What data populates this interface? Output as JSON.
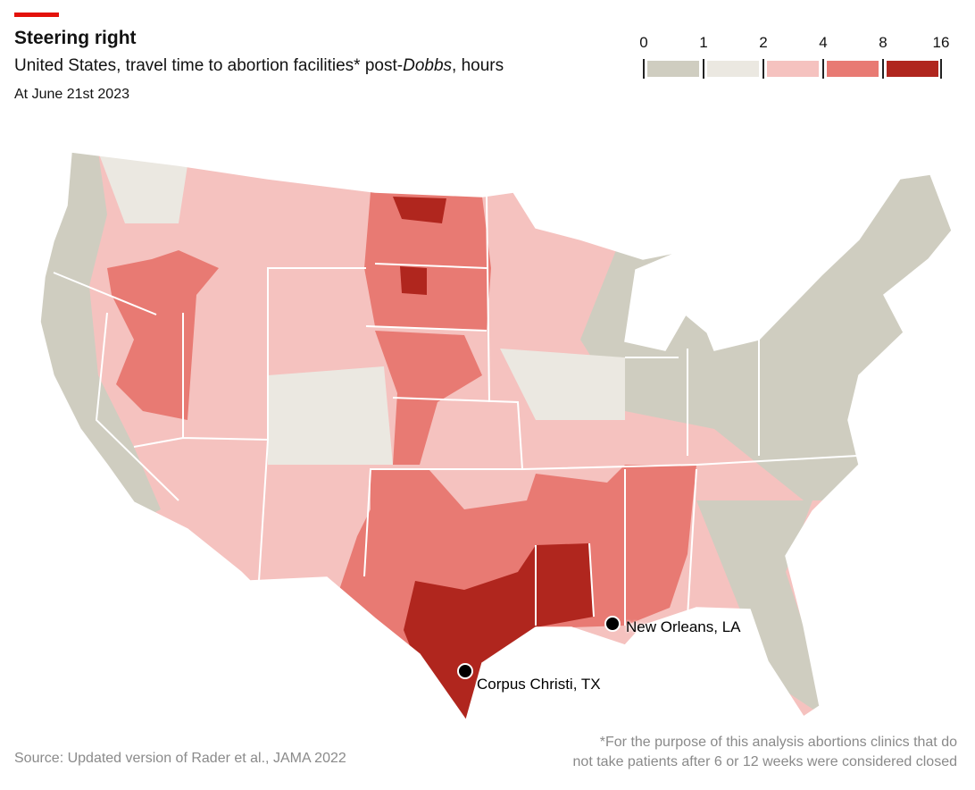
{
  "header": {
    "title": "Steering right",
    "subtitle_before": "United States, travel time to abortion facilities* post-",
    "subtitle_italic": "Dobbs",
    "subtitle_after": ", hours",
    "date": "At June 21st 2023"
  },
  "legend": {
    "breaks": [
      "0",
      "1",
      "2",
      "4",
      "8",
      "16"
    ],
    "colors": [
      "#cfcdc0",
      "#ebe8e1",
      "#f5c2bf",
      "#e87a73",
      "#b0261e"
    ]
  },
  "cities": [
    {
      "name": "New Orleans, LA"
    },
    {
      "name": "Corpus Christi, TX"
    }
  ],
  "footer": {
    "source": "Source: Updated version of Rader et al., JAMA 2022",
    "note_line1": "*For the purpose of this analysis abortions clinics that do",
    "note_line2": "not take patients after 6 or 12 weeks were considered closed"
  }
}
